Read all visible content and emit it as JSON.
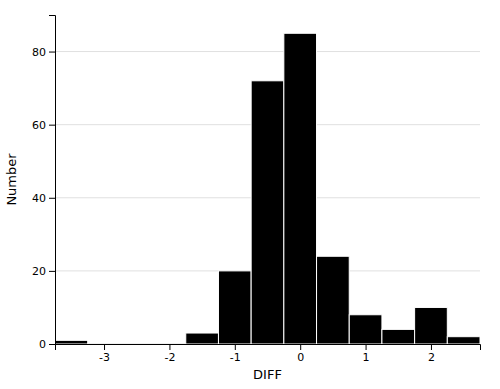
{
  "chart_data": {
    "type": "histogram",
    "bins": [
      -3.75,
      -3.25,
      -2.75,
      -2.25,
      -1.75,
      -1.25,
      -0.75,
      -0.25,
      0.25,
      0.75,
      1.25,
      1.75,
      2.25,
      2.75
    ],
    "values": [
      1,
      0,
      0,
      0,
      3,
      20,
      72,
      85,
      24,
      8,
      4,
      10,
      2
    ],
    "color": "#000000",
    "xlabel": "DIFF",
    "ylabel": "Number",
    "xlim": [
      -3.75,
      2.75
    ],
    "ylim": [
      0,
      90
    ],
    "xticks": [
      -3,
      -2,
      -1,
      0,
      1,
      2
    ],
    "yticks": [
      0,
      20,
      40,
      60,
      80
    ],
    "grid": true
  }
}
